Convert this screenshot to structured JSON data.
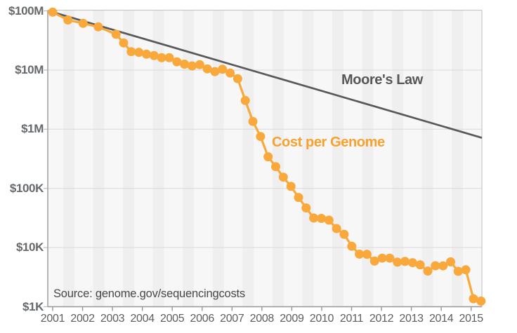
{
  "chart_data": {
    "type": "line",
    "title": "",
    "source": "Source: genome.gov/sequencingcosts",
    "annotations": {
      "moore_label": "Moore's Law",
      "cost_label": "Cost per Genome"
    },
    "x_axis": {
      "tick_years": [
        2001,
        2002,
        2003,
        2004,
        2005,
        2006,
        2007,
        2008,
        2009,
        2010,
        2011,
        2012,
        2013,
        2014,
        2015
      ],
      "tick_labels": [
        "2001",
        "2002",
        "2003",
        "2004",
        "2005",
        "2006",
        "2007",
        "2008",
        "2009",
        "2010",
        "2011",
        "2012",
        "2013",
        "2014",
        "2015"
      ]
    },
    "y_axis": {
      "scale": "log",
      "ticks": [
        {
          "label": "$100M",
          "value": 100000000
        },
        {
          "label": "$10M",
          "value": 10000000
        },
        {
          "label": "$1M",
          "value": 1000000
        },
        {
          "label": "$100K",
          "value": 100000
        },
        {
          "label": "$10K",
          "value": 10000
        },
        {
          "label": "$1K",
          "value": 1000
        }
      ],
      "range": [
        1000,
        100000000
      ]
    },
    "series": [
      {
        "name": "Cost per Genome",
        "style": "line-with-dots",
        "color": "#F9A83C",
        "points": [
          {
            "date": "Sep 2001",
            "t": 2001.667,
            "cost": 95263072
          },
          {
            "date": "Mar 2002",
            "t": 2002.167,
            "cost": 70175437
          },
          {
            "date": "Sep 2002",
            "t": 2002.667,
            "cost": 61448422
          },
          {
            "date": "Mar 2003",
            "t": 2003.167,
            "cost": 53751684
          },
          {
            "date": "Oct 2003",
            "t": 2003.75,
            "cost": 40157554
          },
          {
            "date": "Jan 2004",
            "t": 2004.0,
            "cost": 28780376
          },
          {
            "date": "Apr 2004",
            "t": 2004.25,
            "cost": 20442576
          },
          {
            "date": "Jul 2004",
            "t": 2004.5,
            "cost": 19934346
          },
          {
            "date": "Oct 2004",
            "t": 2004.75,
            "cost": 18519312
          },
          {
            "date": "Jan 2005",
            "t": 2005.0,
            "cost": 17534970
          },
          {
            "date": "Apr 2005",
            "t": 2005.25,
            "cost": 16159699
          },
          {
            "date": "Jul 2005",
            "t": 2005.5,
            "cost": 16180224
          },
          {
            "date": "Oct 2005",
            "t": 2005.75,
            "cost": 13801124
          },
          {
            "date": "Jan 2006",
            "t": 2006.0,
            "cost": 12585659
          },
          {
            "date": "Apr 2006",
            "t": 2006.25,
            "cost": 11732535
          },
          {
            "date": "Jul 2006",
            "t": 2006.5,
            "cost": 12342632
          },
          {
            "date": "Oct 2006",
            "t": 2006.75,
            "cost": 10474556
          },
          {
            "date": "Jan 2007",
            "t": 2007.0,
            "cost": 9408739
          },
          {
            "date": "Apr 2007",
            "t": 2007.25,
            "cost": 10314621
          },
          {
            "date": "Jul 2007",
            "t": 2007.5,
            "cost": 8927342
          },
          {
            "date": "Oct 2007",
            "t": 2007.75,
            "cost": 7147571
          },
          {
            "date": "Jan 2008",
            "t": 2008.0,
            "cost": 3063820
          },
          {
            "date": "Apr 2008",
            "t": 2008.25,
            "cost": 1352982
          },
          {
            "date": "Jul 2008",
            "t": 2008.5,
            "cost": 752080
          },
          {
            "date": "Oct 2008",
            "t": 2008.75,
            "cost": 342502
          },
          {
            "date": "Jan 2009",
            "t": 2009.0,
            "cost": 232735
          },
          {
            "date": "Apr 2009",
            "t": 2009.25,
            "cost": 154714
          },
          {
            "date": "Jul 2009",
            "t": 2009.5,
            "cost": 108065
          },
          {
            "date": "Oct 2009",
            "t": 2009.75,
            "cost": 70333
          },
          {
            "date": "Jan 2010",
            "t": 2010.0,
            "cost": 46774
          },
          {
            "date": "Apr 2010",
            "t": 2010.25,
            "cost": 31512
          },
          {
            "date": "Jul 2010",
            "t": 2010.5,
            "cost": 31125
          },
          {
            "date": "Oct 2010",
            "t": 2010.75,
            "cost": 29092
          },
          {
            "date": "Jan 2011",
            "t": 2011.0,
            "cost": 20963
          },
          {
            "date": "Apr 2011",
            "t": 2011.25,
            "cost": 16712
          },
          {
            "date": "Jul 2011",
            "t": 2011.5,
            "cost": 10497
          },
          {
            "date": "Oct 2011",
            "t": 2011.75,
            "cost": 7743
          },
          {
            "date": "Jan 2012",
            "t": 2012.0,
            "cost": 7666
          },
          {
            "date": "Apr 2012",
            "t": 2012.25,
            "cost": 5901
          },
          {
            "date": "Jul 2012",
            "t": 2012.5,
            "cost": 6618
          },
          {
            "date": "Oct 2012",
            "t": 2012.75,
            "cost": 6618
          },
          {
            "date": "Jan 2013",
            "t": 2013.0,
            "cost": 5671
          },
          {
            "date": "Apr 2013",
            "t": 2013.25,
            "cost": 5826
          },
          {
            "date": "Jul 2013",
            "t": 2013.5,
            "cost": 5550
          },
          {
            "date": "Oct 2013",
            "t": 2013.75,
            "cost": 5096
          },
          {
            "date": "Jan 2014",
            "t": 2014.0,
            "cost": 4008
          },
          {
            "date": "Apr 2014",
            "t": 2014.25,
            "cost": 4920
          },
          {
            "date": "Jul 2014",
            "t": 2014.5,
            "cost": 4905
          },
          {
            "date": "Oct 2014",
            "t": 2014.75,
            "cost": 5731
          },
          {
            "date": "Jan 2015",
            "t": 2015.0,
            "cost": 3970
          },
          {
            "date": "Apr 2015",
            "t": 2015.25,
            "cost": 4211
          },
          {
            "date": "Jul 2015",
            "t": 2015.5,
            "cost": 1363
          },
          {
            "date": "Oct 2015",
            "t": 2015.75,
            "cost": 1245
          }
        ]
      },
      {
        "name": "Moore's Law",
        "style": "straight-line",
        "color": "#58595B",
        "start": {
          "t": 2001.667,
          "value": 95263072
        },
        "halving_period_years": 2
      }
    ],
    "layout_hints": {
      "grid": "horizontal-decades",
      "background_stripes": "one-per-year",
      "legend": "inline-annotations"
    }
  },
  "colors": {
    "cost_line": "#F9A83C",
    "cost_label": "#F7A12F",
    "moore_line": "#58595B",
    "gridline": "#DCDCDC",
    "plot_border": "#C9C9C9",
    "axis_line": "#979797",
    "stripe_light": "#F7F7F7",
    "stripe_dark": "#EFEFEF",
    "tick_label": "#5C5E60",
    "background": "#FFFFFF"
  }
}
